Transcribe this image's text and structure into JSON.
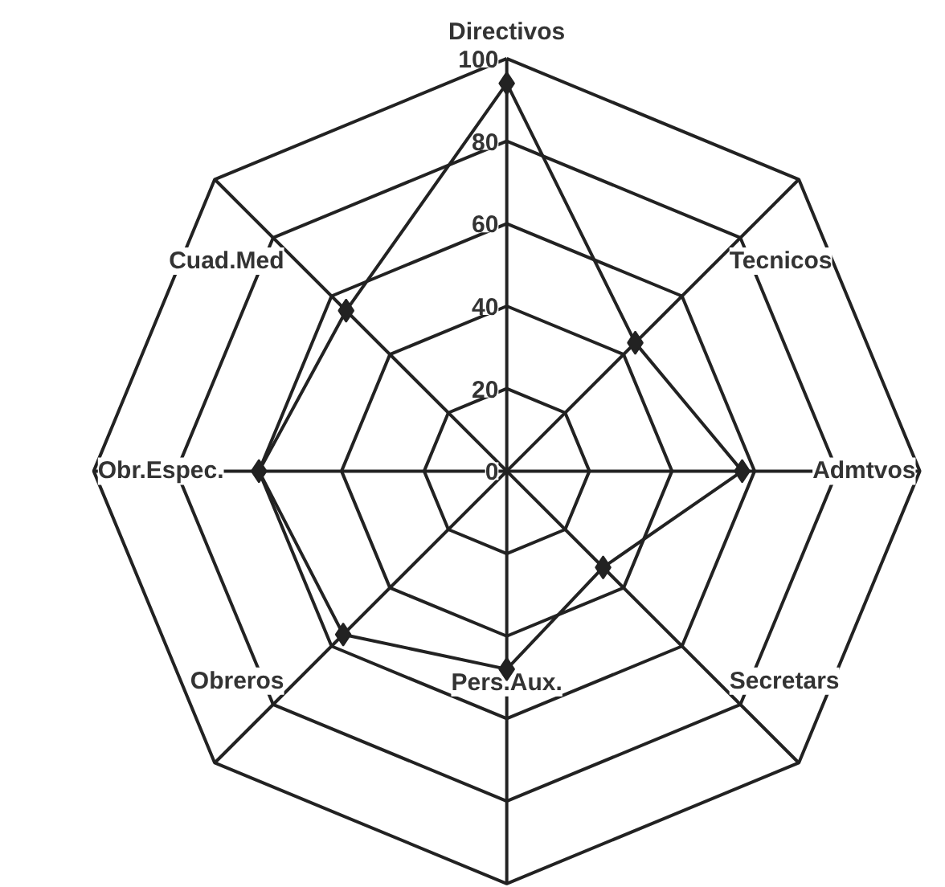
{
  "chart_data": {
    "type": "radar",
    "categories": [
      "Directivos",
      "Tecnicos",
      "Admtvos",
      "Secretars",
      "Pers.Aux.",
      "Obreros",
      "Obr.Espec.",
      "Cuad.Med"
    ],
    "series": [
      {
        "color": "#222222",
        "values": [
          94,
          44,
          57,
          33,
          48,
          56,
          60,
          55
        ]
      }
    ],
    "ylim": [
      0,
      100
    ],
    "yticks": [
      0,
      20,
      40,
      60,
      80,
      100
    ],
    "marker": "diamond",
    "line_style": "solid"
  }
}
